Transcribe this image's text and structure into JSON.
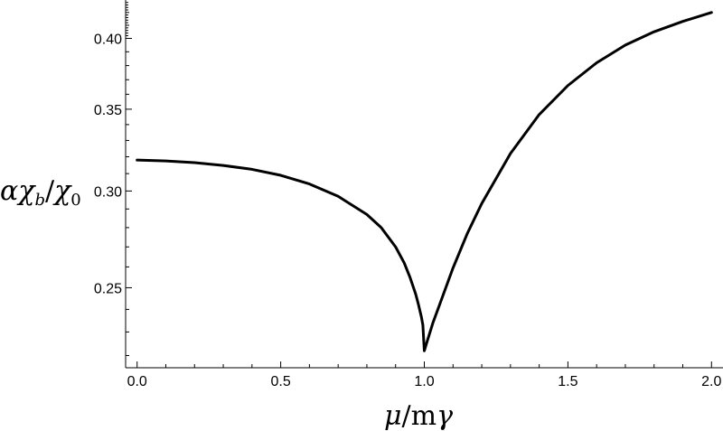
{
  "chart_data": {
    "type": "line",
    "title": "",
    "xlabel": {
      "mu": "μ",
      "slash": "/",
      "m": "m",
      "gamma": "γ"
    },
    "ylabel": {
      "alpha": "α",
      "chi": "χ",
      "sub_b": "b",
      "slash": "/",
      "chi0": "χ",
      "sub_0": "0"
    },
    "x_ticks": [
      "0.0",
      "0.5",
      "1.0",
      "1.5",
      "2.0"
    ],
    "y_ticks": [
      "0.25",
      "0.30",
      "0.35",
      "0.40"
    ],
    "xlim": [
      -0.04,
      2.04
    ],
    "ylim": [
      0.215,
      0.43
    ],
    "y_scale": "log",
    "grid": false,
    "series": [
      {
        "color": "#000000",
        "x": [
          0.0,
          0.1,
          0.2,
          0.3,
          0.4,
          0.5,
          0.6,
          0.7,
          0.8,
          0.85,
          0.9,
          0.93,
          0.95,
          0.97,
          0.98,
          0.99,
          0.995,
          1.0,
          1.01,
          1.03,
          1.05,
          1.1,
          1.15,
          1.2,
          1.3,
          1.4,
          1.5,
          1.6,
          1.7,
          1.8,
          1.9,
          2.0
        ],
        "y": [
          0.318,
          0.3175,
          0.3165,
          0.3148,
          0.3125,
          0.309,
          0.304,
          0.297,
          0.287,
          0.28,
          0.27,
          0.262,
          0.255,
          0.247,
          0.242,
          0.2365,
          0.233,
          0.222,
          0.226,
          0.234,
          0.241,
          0.2595,
          0.277,
          0.293,
          0.322,
          0.3465,
          0.366,
          0.382,
          0.395,
          0.405,
          0.413,
          0.42
        ]
      }
    ]
  }
}
